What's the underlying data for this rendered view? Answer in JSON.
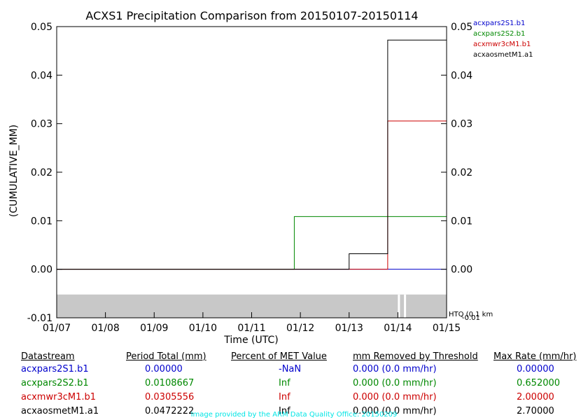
{
  "chart_data": {
    "type": "line",
    "title": "ACXS1 Precipitation Comparison from 20150107-20150114",
    "xlabel": "Time (UTC)",
    "ylabel": "(CUMULATIVE_MM)",
    "xlim": [
      "01/07",
      "01/15"
    ],
    "ylim": [
      -0.01,
      0.05
    ],
    "x_ticks": [
      "01/07",
      "01/08",
      "01/09",
      "01/10",
      "01/11",
      "01/12",
      "01/13",
      "01/14",
      "01/15"
    ],
    "y_ticks": [
      "-0.01",
      "0.00",
      "0.01",
      "0.02",
      "0.03",
      "0.04",
      "0.05"
    ],
    "y_tick_values": [
      -0.01,
      0.0,
      0.01,
      0.02,
      0.03,
      0.04,
      0.05
    ],
    "legend_position": "top-right",
    "qc_band_label": "HTQ (0.1 km",
    "series": [
      {
        "name": "acxpars2S1.b1",
        "color": "#0000cc",
        "points": [
          [
            "01/07",
            0.0
          ],
          [
            "01/15",
            0.0
          ]
        ]
      },
      {
        "name": "acxpars2S2.b1",
        "color": "#008800",
        "points": [
          [
            "01/07",
            0.0
          ],
          [
            "01/11 21:00",
            0.0
          ],
          [
            "01/11 21:00",
            0.0108667
          ],
          [
            "01/15",
            0.0108667
          ]
        ]
      },
      {
        "name": "acxmwr3cM1.b1",
        "color": "#cc0000",
        "points": [
          [
            "01/07",
            0.0
          ],
          [
            "01/13 19:00",
            0.0
          ],
          [
            "01/13 19:00",
            0.0305556
          ],
          [
            "01/15",
            0.0305556
          ]
        ]
      },
      {
        "name": "acxaosmetM1.a1",
        "color": "#000000",
        "points": [
          [
            "01/07",
            0.0
          ],
          [
            "01/13 00:00",
            0.0
          ],
          [
            "01/13 00:00",
            0.0032
          ],
          [
            "01/13 19:00",
            0.0032
          ],
          [
            "01/13 19:00",
            0.0472222
          ],
          [
            "01/15",
            0.0472222
          ]
        ]
      }
    ]
  },
  "table": {
    "headers": [
      "Datastream",
      "Period Total (mm)",
      "Percent of MET Value",
      "mm Removed by Threshold",
      "Max Rate (mm/hr)"
    ],
    "rows": [
      {
        "datastream": "acxpars2S1.b1",
        "total": "0.00000",
        "percent": "-NaN",
        "removed": "0.000 (0.0 mm/hr)",
        "max_rate": "0.00000",
        "color": "#0000cc"
      },
      {
        "datastream": "acxpars2S2.b1",
        "total": "0.0108667",
        "percent": "Inf",
        "removed": "0.000 (0.0 mm/hr)",
        "max_rate": "0.652000",
        "color": "#008800"
      },
      {
        "datastream": "acxmwr3cM1.b1",
        "total": "0.0305556",
        "percent": "Inf",
        "removed": "0.000 (0.0 mm/hr)",
        "max_rate": "2.00000",
        "color": "#cc0000"
      },
      {
        "datastream": "acxaosmetM1.a1",
        "total": "0.0472222",
        "percent": "Inf",
        "removed": "0.000 (0.0 mm/hr)",
        "max_rate": "2.70000",
        "color": "#000000"
      }
    ]
  },
  "footer": "Image provided by the ARM Data Quality Office: 20150209",
  "colors": {
    "qc_band": "#c8c8c8",
    "footer": "#00e5e5"
  }
}
